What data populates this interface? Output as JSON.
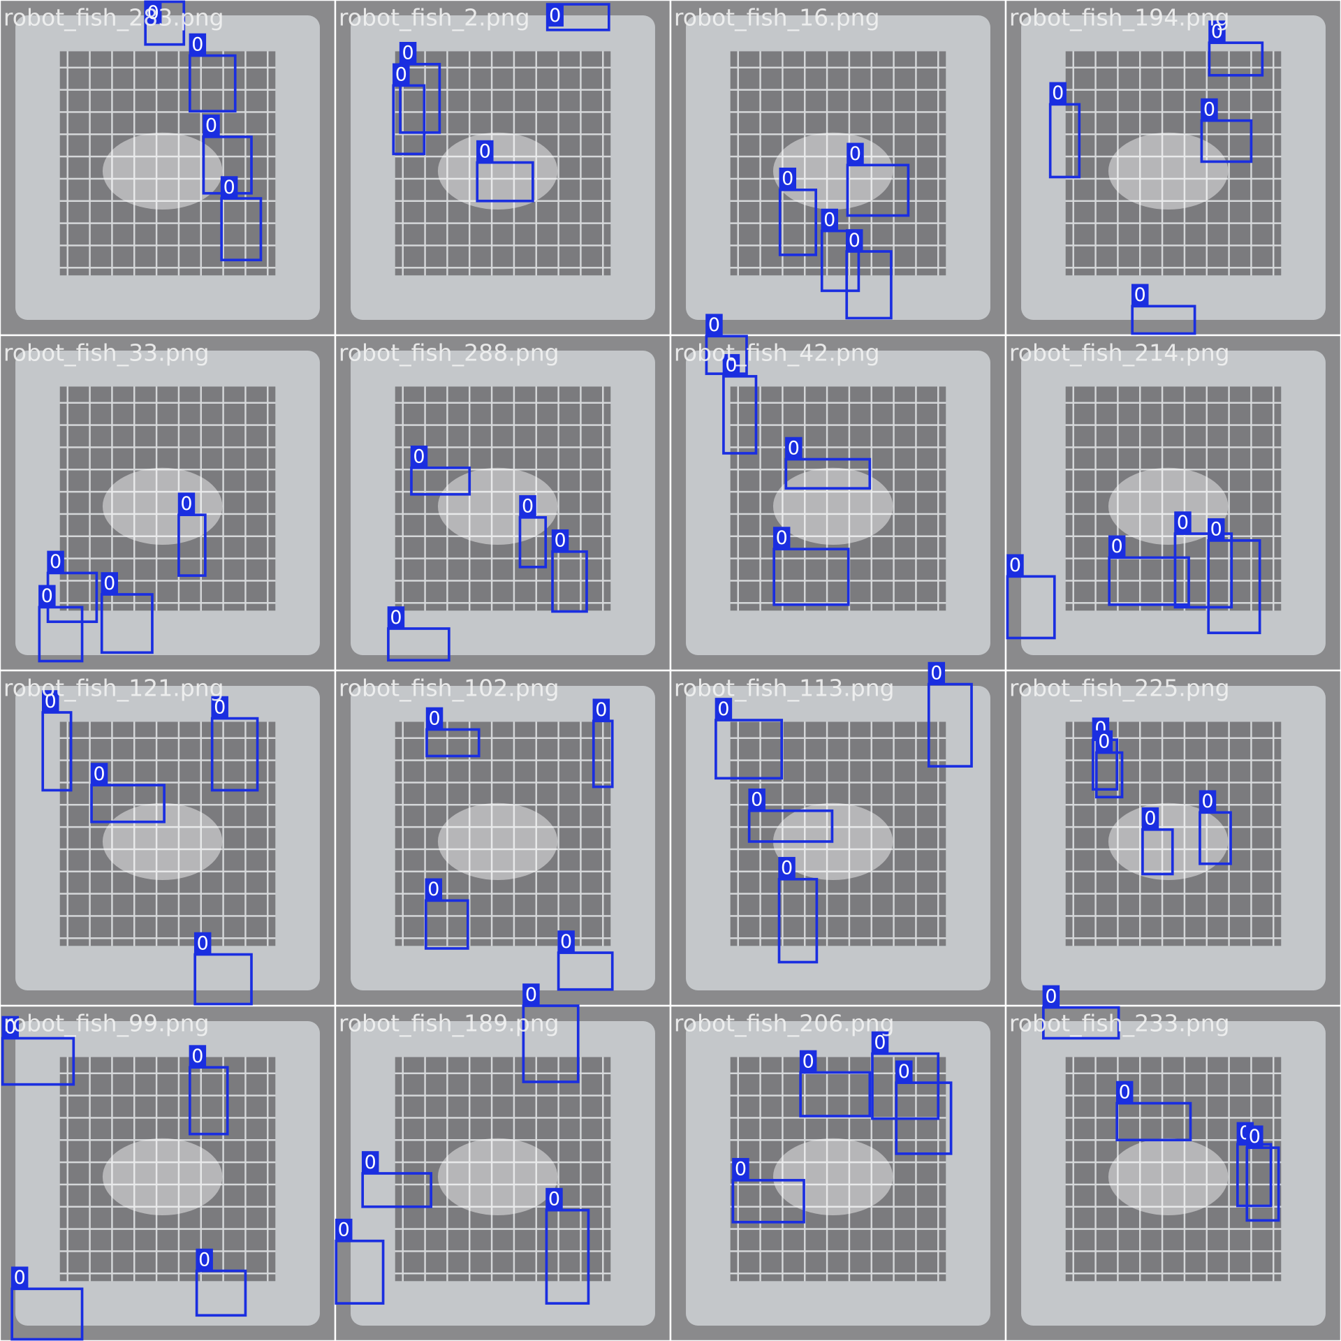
{
  "tiles": [
    {
      "filename": "robot_fish_283.png",
      "labels": [
        0,
        0,
        0,
        0
      ]
    },
    {
      "filename": "robot_fish_2.png",
      "labels": [
        0,
        0,
        0,
        0
      ]
    },
    {
      "filename": "robot_fish_16.png",
      "labels": [
        0,
        0,
        0,
        0
      ]
    },
    {
      "filename": "robot_fish_194.png",
      "labels": [
        0,
        0,
        0,
        0
      ]
    },
    {
      "filename": "robot_fish_33.png",
      "labels": [
        0,
        0,
        0,
        0
      ]
    },
    {
      "filename": "robot_fish_288.png",
      "labels": [
        0,
        0,
        0,
        0
      ]
    },
    {
      "filename": "robot_fish_42.png",
      "labels": [
        0,
        0,
        0,
        0
      ]
    },
    {
      "filename": "robot_fish_214.png",
      "labels": [
        0,
        0,
        0,
        0
      ]
    },
    {
      "filename": "robot_fish_121.png",
      "labels": [
        0,
        0,
        0,
        0
      ]
    },
    {
      "filename": "robot_fish_102.png",
      "labels": [
        0,
        0,
        0,
        0
      ]
    },
    {
      "filename": "robot_fish_113.png",
      "labels": [
        0,
        0,
        0,
        0
      ]
    },
    {
      "filename": "robot_fish_225.png",
      "labels": [
        0,
        0,
        0,
        0
      ]
    },
    {
      "filename": "robot_fish_99.png",
      "labels": [
        0,
        0,
        0,
        0
      ]
    },
    {
      "filename": "robot_fish_189.png",
      "labels": [
        0,
        0,
        0,
        0
      ]
    },
    {
      "filename": "robot_fish_206.png",
      "labels": [
        0,
        0,
        0,
        0
      ]
    },
    {
      "filename": "robot_fish_233.png",
      "labels": [
        0,
        0,
        0,
        0
      ]
    }
  ]
}
